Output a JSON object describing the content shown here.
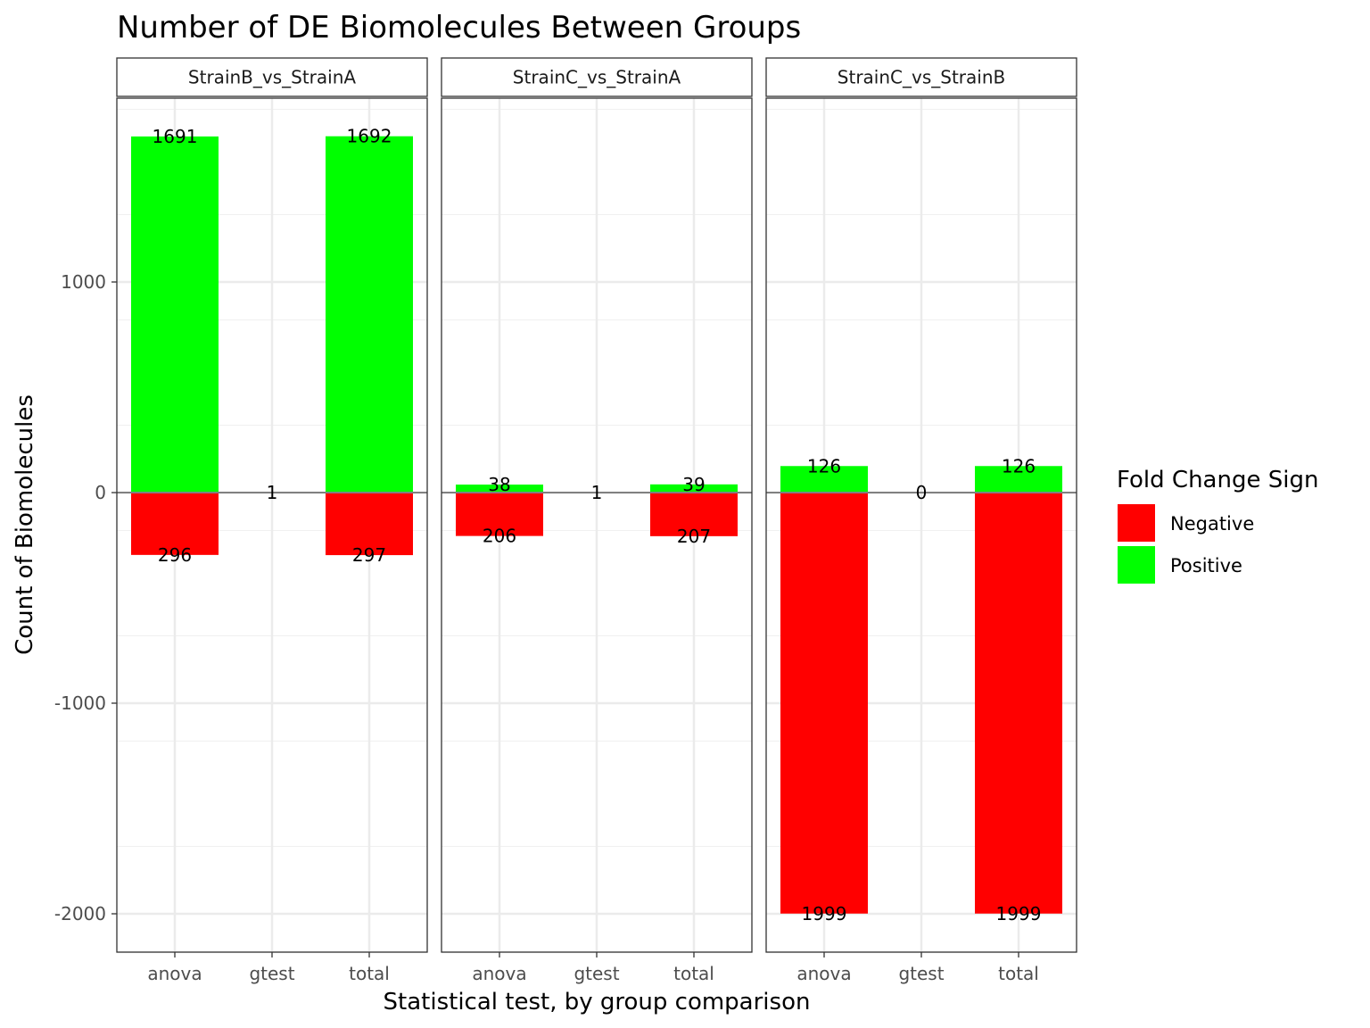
{
  "chart_data": {
    "type": "bar",
    "title": "Number of DE Biomolecules Between Groups",
    "xlabel": "Statistical test, by group comparison",
    "ylabel": "Count of Biomolecules",
    "ylim": [
      -2180,
      1880
    ],
    "yticks": [
      -2000,
      -1000,
      0,
      1000
    ],
    "ytick_labels": [
      "-2000",
      "-1000",
      "0",
      "1000"
    ],
    "categories": [
      "anova",
      "gtest",
      "total"
    ],
    "grid": true,
    "legend": {
      "title": "Fold Change Sign",
      "position": "right",
      "items": [
        {
          "label": "Negative",
          "color": "#ff0000"
        },
        {
          "label": "Positive",
          "color": "#00ff00"
        }
      ]
    },
    "facets": [
      {
        "label": "StrainB_vs_StrainA",
        "series": [
          {
            "name": "Negative",
            "values": [
              -296,
              0,
              -297
            ]
          },
          {
            "name": "Positive",
            "values": [
              1691,
              0,
              1692
            ]
          }
        ],
        "labels": [
          {
            "category": "anova",
            "y": 1691,
            "text": "1691"
          },
          {
            "category": "anova",
            "y": -296,
            "text": "296"
          },
          {
            "category": "gtest",
            "y": 0,
            "text": "1"
          },
          {
            "category": "total",
            "y": 1692,
            "text": "1692"
          },
          {
            "category": "total",
            "y": -297,
            "text": "297"
          }
        ]
      },
      {
        "label": "StrainC_vs_StrainA",
        "series": [
          {
            "name": "Negative",
            "values": [
              -206,
              0,
              -207
            ]
          },
          {
            "name": "Positive",
            "values": [
              38,
              0,
              39
            ]
          }
        ],
        "labels": [
          {
            "category": "anova",
            "y": 38,
            "text": "38"
          },
          {
            "category": "anova",
            "y": -206,
            "text": "206"
          },
          {
            "category": "gtest",
            "y": 0,
            "text": "1"
          },
          {
            "category": "total",
            "y": 39,
            "text": "39"
          },
          {
            "category": "total",
            "y": -207,
            "text": "207"
          }
        ]
      },
      {
        "label": "StrainC_vs_StrainB",
        "series": [
          {
            "name": "Negative",
            "values": [
              -1999,
              0,
              -1999
            ]
          },
          {
            "name": "Positive",
            "values": [
              126,
              0,
              126
            ]
          }
        ],
        "labels": [
          {
            "category": "anova",
            "y": 126,
            "text": "126"
          },
          {
            "category": "anova",
            "y": -1999,
            "text": "1999"
          },
          {
            "category": "gtest",
            "y": 0,
            "text": "0"
          },
          {
            "category": "total",
            "y": 126,
            "text": "126"
          },
          {
            "category": "total",
            "y": -1999,
            "text": "1999"
          }
        ]
      }
    ]
  }
}
